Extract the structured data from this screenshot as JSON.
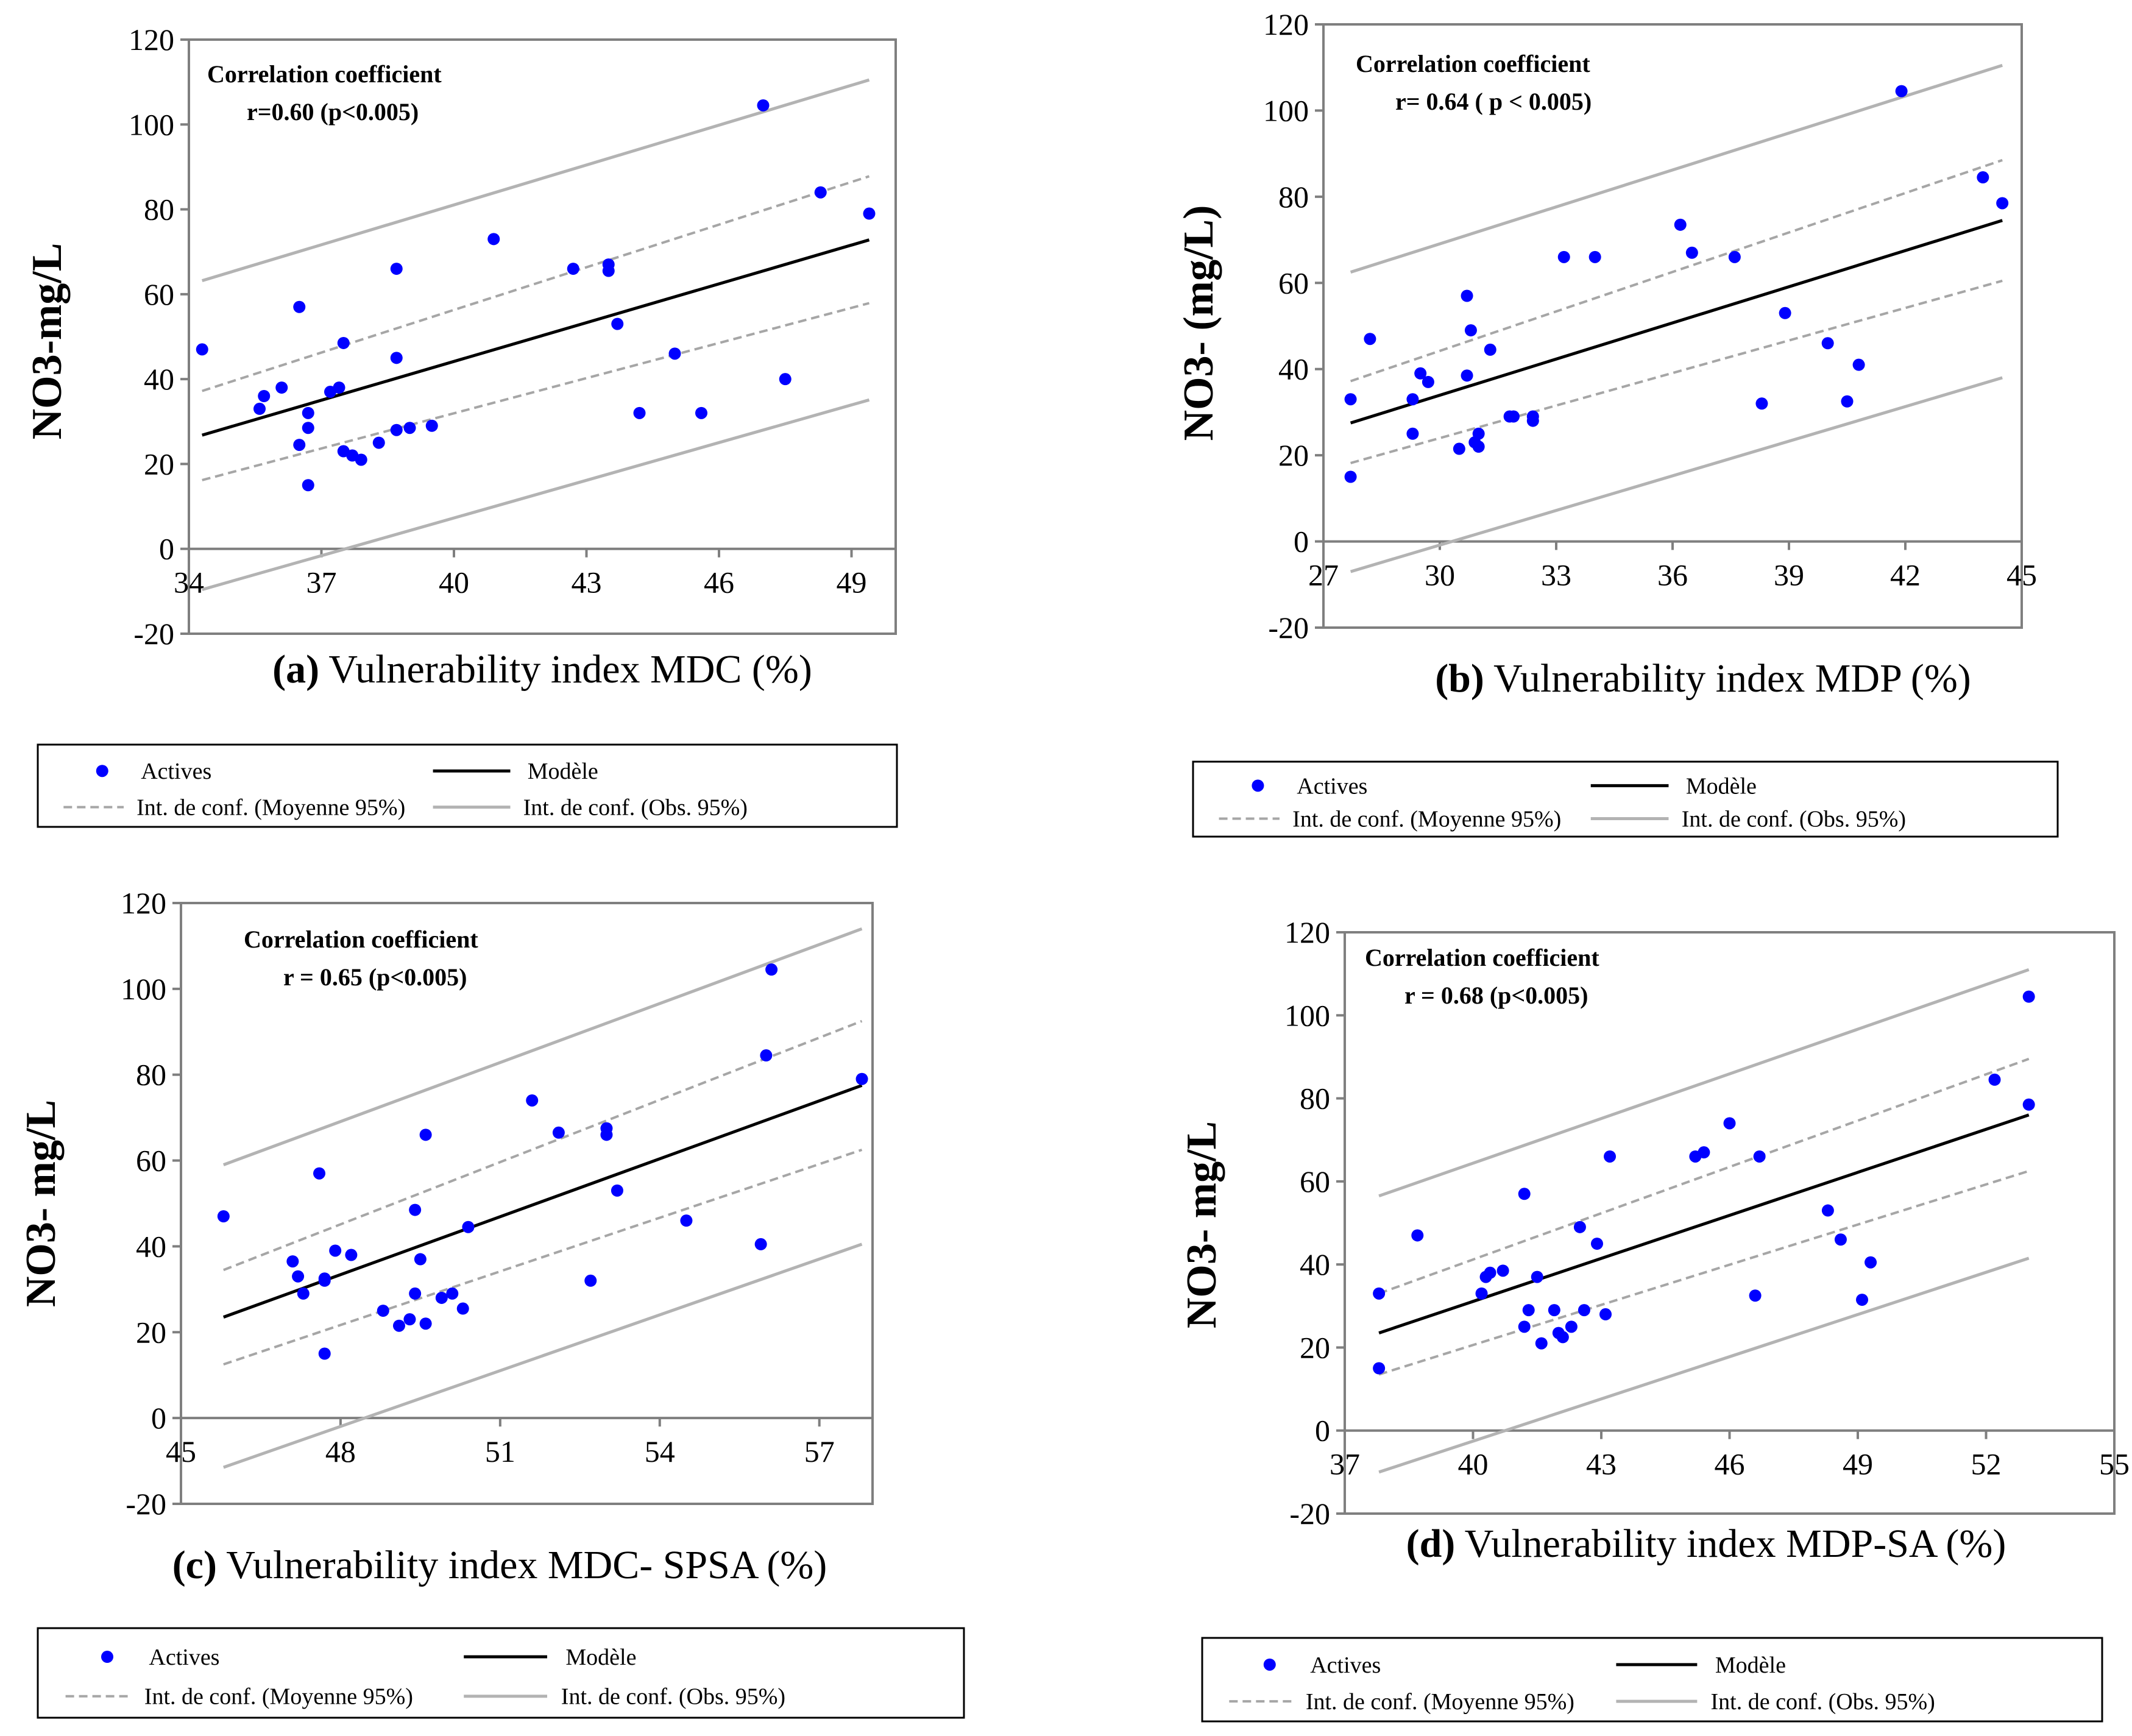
{
  "legend": {
    "actives": "Actives",
    "modele": "Modèle",
    "mean_ci": "Int. de conf. (Moyenne 95%)",
    "obs_ci": "Int. de conf. (Obs. 95%)"
  },
  "style": {
    "point_color": "#0000ff",
    "model_color": "#000000",
    "mean_ci_color": "#a6a6a6",
    "obs_ci_color": "#b3b3b3"
  },
  "chart_data": [
    {
      "type": "scatter",
      "panel": "a",
      "xlabel_prefix": "(a)",
      "xlabel": "Vulnerability  index MDC (%)",
      "ylabel": "NO3-mg/L",
      "annotation_line1": "Correlation coefficient",
      "annotation_line2": "r=0.60  (p<0.005)",
      "xlim": [
        34,
        50
      ],
      "ylim": [
        -20,
        120
      ],
      "xticks": [
        34,
        37,
        40,
        43,
        46,
        49
      ],
      "yticks": [
        -20,
        0,
        20,
        40,
        60,
        80,
        100,
        120
      ],
      "model": [
        [
          34.3,
          26.8
        ],
        [
          49.4,
          72.8
        ]
      ],
      "mean_ci_upper": [
        [
          34.3,
          37.2
        ],
        [
          49.4,
          87.8
        ]
      ],
      "mean_ci_lower": [
        [
          34.3,
          16.2
        ],
        [
          49.4,
          57.9
        ]
      ],
      "obs_ci_upper": [
        [
          34.3,
          63.2
        ],
        [
          49.4,
          110.5
        ]
      ],
      "obs_ci_lower": [
        [
          34.3,
          -9.6
        ],
        [
          49.4,
          35.1
        ]
      ],
      "points": [
        [
          34.3,
          47
        ],
        [
          35.6,
          33
        ],
        [
          35.7,
          36
        ],
        [
          36.1,
          38
        ],
        [
          36.5,
          24.5
        ],
        [
          36.5,
          57
        ],
        [
          36.7,
          28.5
        ],
        [
          36.7,
          32
        ],
        [
          36.7,
          15
        ],
        [
          37.2,
          37
        ],
        [
          37.4,
          38
        ],
        [
          37.5,
          23
        ],
        [
          37.5,
          48.5
        ],
        [
          37.7,
          22
        ],
        [
          37.9,
          21
        ],
        [
          38.3,
          25
        ],
        [
          38.7,
          28
        ],
        [
          38.7,
          66
        ],
        [
          38.7,
          45
        ],
        [
          39.0,
          28.5
        ],
        [
          39.5,
          29
        ],
        [
          40.9,
          73
        ],
        [
          42.7,
          66
        ],
        [
          43.5,
          67
        ],
        [
          43.5,
          65.5
        ],
        [
          43.7,
          53
        ],
        [
          44.2,
          32
        ],
        [
          45.0,
          46
        ],
        [
          45.6,
          32
        ],
        [
          47.0,
          104.5
        ],
        [
          47.5,
          40
        ],
        [
          48.3,
          84
        ],
        [
          49.4,
          79
        ]
      ]
    },
    {
      "type": "scatter",
      "panel": "b",
      "xlabel_prefix": "(b)",
      "xlabel": "Vulnerability index MDP (%)",
      "ylabel": "NO3- (mg/L)",
      "annotation_line1": "Correlation coefficient",
      "annotation_line2": "r= 0.64   ( p < 0.005)",
      "xlim": [
        27,
        45
      ],
      "ylim": [
        -20,
        120
      ],
      "xticks": [
        27,
        30,
        33,
        36,
        39,
        42,
        45
      ],
      "yticks": [
        -20,
        0,
        20,
        40,
        60,
        80,
        100,
        120
      ],
      "model": [
        [
          27.7,
          27.5
        ],
        [
          44.5,
          74.5
        ]
      ],
      "mean_ci_upper": [
        [
          27.7,
          37.2
        ],
        [
          44.5,
          88.5
        ]
      ],
      "mean_ci_lower": [
        [
          27.7,
          18.2
        ],
        [
          44.5,
          60.5
        ]
      ],
      "obs_ci_upper": [
        [
          27.7,
          62.5
        ],
        [
          44.5,
          110.5
        ]
      ],
      "obs_ci_lower": [
        [
          27.7,
          -7
        ],
        [
          44.5,
          38
        ]
      ],
      "points": [
        [
          27.7,
          15
        ],
        [
          27.7,
          33
        ],
        [
          28.2,
          47
        ],
        [
          29.3,
          33
        ],
        [
          29.3,
          25
        ],
        [
          29.5,
          39
        ],
        [
          29.7,
          37
        ],
        [
          30.5,
          21.5
        ],
        [
          30.7,
          57
        ],
        [
          30.7,
          38.5
        ],
        [
          30.8,
          49
        ],
        [
          30.9,
          23
        ],
        [
          31.0,
          25
        ],
        [
          31.0,
          22
        ],
        [
          31.3,
          44.5
        ],
        [
          31.8,
          29
        ],
        [
          31.9,
          29
        ],
        [
          32.4,
          28
        ],
        [
          32.4,
          29
        ],
        [
          33.2,
          66
        ],
        [
          34.0,
          66
        ],
        [
          36.2,
          73.5
        ],
        [
          36.5,
          67
        ],
        [
          37.6,
          66
        ],
        [
          38.3,
          32
        ],
        [
          38.9,
          53
        ],
        [
          40.0,
          46
        ],
        [
          40.5,
          32.5
        ],
        [
          40.8,
          41
        ],
        [
          41.9,
          104.5
        ],
        [
          44.0,
          84.5
        ],
        [
          44.5,
          78.5
        ]
      ]
    },
    {
      "type": "scatter",
      "panel": "c",
      "xlabel_prefix": "(c)",
      "xlabel": "Vulnerability  index MDC- SPSA (%)",
      "ylabel": "NO3- mg/L",
      "annotation_line1": "Correlation coefficient",
      "annotation_line2": "r = 0.65 (p<0.005)",
      "xlim": [
        45,
        58
      ],
      "ylim": [
        -20,
        120
      ],
      "xticks": [
        45,
        48,
        51,
        54,
        57
      ],
      "yticks": [
        -20,
        0,
        20,
        40,
        60,
        80,
        100,
        120
      ],
      "model": [
        [
          45.8,
          23.5
        ],
        [
          57.8,
          77.5
        ]
      ],
      "mean_ci_upper": [
        [
          45.8,
          34.5
        ],
        [
          57.8,
          92.5
        ]
      ],
      "mean_ci_lower": [
        [
          45.8,
          12.5
        ],
        [
          57.8,
          62.5
        ]
      ],
      "obs_ci_upper": [
        [
          45.8,
          59
        ],
        [
          57.8,
          114
        ]
      ],
      "obs_ci_lower": [
        [
          45.8,
          -11.5
        ],
        [
          57.8,
          40.5
        ]
      ],
      "points": [
        [
          45.8,
          47
        ],
        [
          47.1,
          36.5
        ],
        [
          47.2,
          33
        ],
        [
          47.3,
          29
        ],
        [
          47.6,
          57
        ],
        [
          47.7,
          32.5
        ],
        [
          47.7,
          32
        ],
        [
          47.7,
          15
        ],
        [
          47.9,
          39
        ],
        [
          48.2,
          38
        ],
        [
          48.8,
          25
        ],
        [
          49.1,
          21.5
        ],
        [
          49.3,
          23
        ],
        [
          49.4,
          48.5
        ],
        [
          49.4,
          29
        ],
        [
          49.5,
          37
        ],
        [
          49.6,
          66
        ],
        [
          49.6,
          22
        ],
        [
          49.9,
          28
        ],
        [
          50.1,
          29
        ],
        [
          50.3,
          25.5
        ],
        [
          50.4,
          44.5
        ],
        [
          51.6,
          74
        ],
        [
          52.1,
          66.5
        ],
        [
          52.7,
          32
        ],
        [
          53.0,
          67.5
        ],
        [
          53.0,
          66
        ],
        [
          53.2,
          53
        ],
        [
          54.5,
          46
        ],
        [
          55.9,
          40.5
        ],
        [
          56.0,
          84.5
        ],
        [
          56.1,
          104.5
        ],
        [
          57.8,
          79
        ]
      ]
    },
    {
      "type": "scatter",
      "panel": "d",
      "xlabel_prefix": "(d)",
      "xlabel": "Vulnerability index MDP-SA (%)",
      "ylabel": "NO3- mg/L",
      "annotation_line1": "Correlation coefficient",
      "annotation_line2": "r = 0.68 (p<0.005)",
      "xlim": [
        37,
        55
      ],
      "ylim": [
        -20,
        120
      ],
      "xticks": [
        37,
        40,
        43,
        46,
        49,
        52,
        55
      ],
      "yticks": [
        -20,
        0,
        20,
        40,
        60,
        80,
        100,
        120
      ],
      "model": [
        [
          37.8,
          23.5
        ],
        [
          53.0,
          76
        ]
      ],
      "mean_ci_upper": [
        [
          37.8,
          33
        ],
        [
          53.0,
          89.5
        ]
      ],
      "mean_ci_lower": [
        [
          37.8,
          13.5
        ],
        [
          53.0,
          62.5
        ]
      ],
      "obs_ci_upper": [
        [
          37.8,
          56.5
        ],
        [
          53.0,
          111
        ]
      ],
      "obs_ci_lower": [
        [
          37.8,
          -10
        ],
        [
          53.0,
          41.5
        ]
      ],
      "points": [
        [
          37.8,
          15
        ],
        [
          37.8,
          33
        ],
        [
          38.7,
          47
        ],
        [
          40.2,
          33
        ],
        [
          40.3,
          37
        ],
        [
          40.4,
          38
        ],
        [
          40.7,
          38.5
        ],
        [
          41.2,
          57
        ],
        [
          41.2,
          25
        ],
        [
          41.3,
          29
        ],
        [
          41.5,
          37
        ],
        [
          41.6,
          21
        ],
        [
          41.9,
          29
        ],
        [
          42.0,
          23.5
        ],
        [
          42.1,
          22.5
        ],
        [
          42.3,
          25
        ],
        [
          42.5,
          49
        ],
        [
          42.6,
          29
        ],
        [
          42.9,
          45
        ],
        [
          43.1,
          28
        ],
        [
          43.2,
          66
        ],
        [
          45.2,
          66
        ],
        [
          45.4,
          67
        ],
        [
          46.0,
          74
        ],
        [
          46.6,
          32.5
        ],
        [
          46.7,
          66
        ],
        [
          48.3,
          53
        ],
        [
          48.6,
          46
        ],
        [
          49.1,
          31.5
        ],
        [
          49.3,
          40.5
        ],
        [
          52.2,
          84.5
        ],
        [
          53.0,
          104.5
        ],
        [
          53.0,
          78.5
        ]
      ]
    }
  ]
}
